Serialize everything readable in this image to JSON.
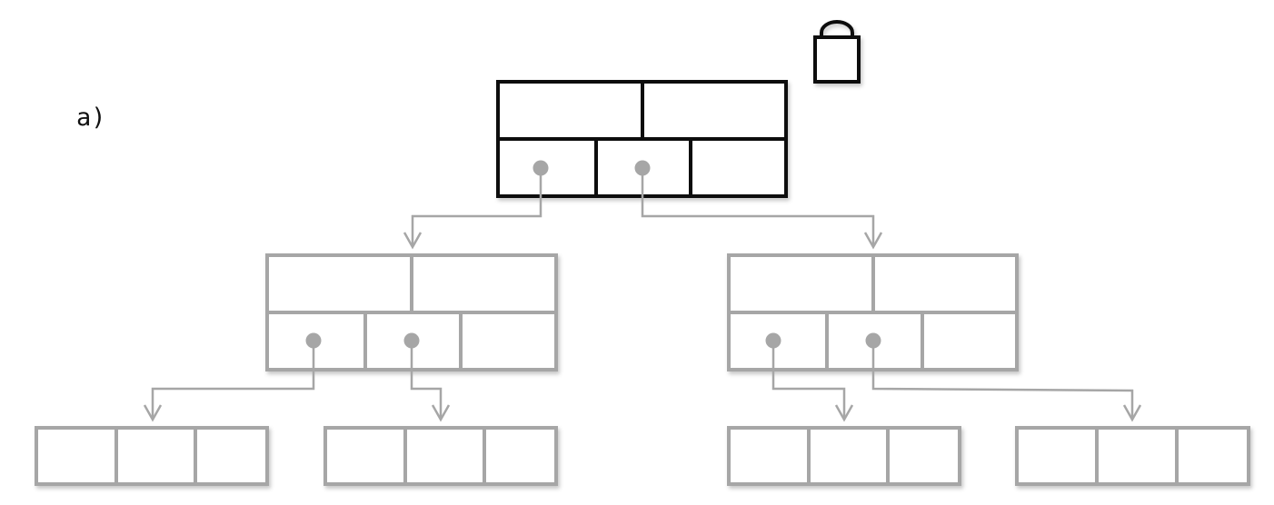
{
  "figure": {
    "label": "a)"
  },
  "colors": {
    "locked_node": "#111111",
    "inactive_node": "#a6a6a6",
    "pointer": "#a6a6a6",
    "lock_icon": "#111111",
    "background": "#ffffff"
  },
  "tree": {
    "root": {
      "state": "locked",
      "key_slots": 2,
      "pointer_slots": 3,
      "active_pointers": 2,
      "icon": "lock-icon"
    },
    "internal_nodes": [
      {
        "state": "unlocked",
        "key_slots": 2,
        "pointer_slots": 3,
        "active_pointers": 2
      },
      {
        "state": "unlocked",
        "key_slots": 2,
        "pointer_slots": 3,
        "active_pointers": 2
      }
    ],
    "leaf_nodes": [
      {
        "state": "unlocked",
        "slots": 3
      },
      {
        "state": "unlocked",
        "slots": 3
      },
      {
        "state": "unlocked",
        "slots": 3
      },
      {
        "state": "unlocked",
        "slots": 3
      }
    ]
  }
}
